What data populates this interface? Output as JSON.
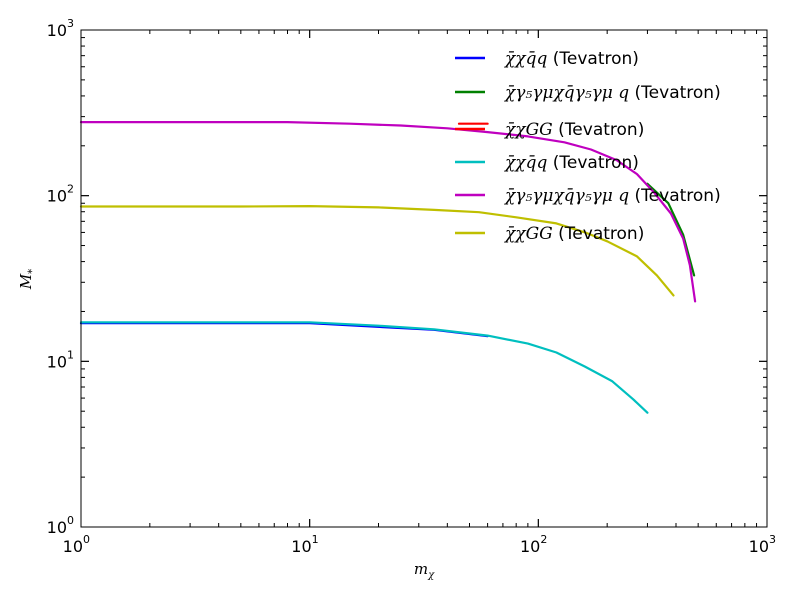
{
  "chart_data": {
    "type": "line",
    "xscale": "log",
    "yscale": "log",
    "xlim": [
      1,
      1000
    ],
    "ylim": [
      1,
      1000
    ],
    "xlabel": "m_χ",
    "ylabel": "M_*",
    "xticks": [
      {
        "base": "10",
        "exp": "0",
        "value": 1
      },
      {
        "base": "10",
        "exp": "1",
        "value": 10
      },
      {
        "base": "10",
        "exp": "2",
        "value": 100
      },
      {
        "base": "10",
        "exp": "3",
        "value": 1000
      }
    ],
    "yticks": [
      {
        "base": "10",
        "exp": "0",
        "value": 1
      },
      {
        "base": "10",
        "exp": "1",
        "value": 10
      },
      {
        "base": "10",
        "exp": "2",
        "value": 100
      },
      {
        "base": "10",
        "exp": "3",
        "value": 1000
      }
    ],
    "grid": false,
    "legend_position": "top-right",
    "series": [
      {
        "name": "χ̄χq̄q (Tevatron)",
        "color": "#0000ff",
        "x": [
          1,
          10,
          35,
          60
        ],
        "y": [
          17,
          17,
          15.5,
          14.2
        ]
      },
      {
        "name": "χ̄γ₅γμχq̄γ₅γμ q (Tevatron)",
        "color": "#008000",
        "x": [
          300,
          370,
          430,
          480
        ],
        "y": [
          118,
          90,
          58,
          33
        ]
      },
      {
        "name": "χ̄χGG (Tevatron)",
        "color": "#ff0000",
        "x": [
          45,
          60
        ],
        "y": [
          272,
          272
        ]
      },
      {
        "name": "χ̄χq̄q (Tevatron)",
        "color": "#00bfbf",
        "x": [
          1,
          10,
          20,
          35,
          60,
          90,
          120,
          160,
          210,
          260,
          300
        ],
        "y": [
          17.2,
          17.2,
          16.4,
          15.6,
          14.3,
          12.8,
          11.3,
          9.3,
          7.6,
          5.9,
          4.9
        ]
      },
      {
        "name": "χ̄γ₅γμχq̄γ₅γμ q (Tevatron)",
        "color": "#bf00bf",
        "x": [
          1,
          8,
          15,
          25,
          40,
          60,
          90,
          130,
          170,
          220,
          270,
          320,
          380,
          430,
          460,
          485
        ],
        "y": [
          278,
          278,
          272,
          265,
          255,
          242,
          228,
          210,
          190,
          164,
          135,
          105,
          78,
          55,
          38,
          23
        ]
      },
      {
        "name": "χ̄χGG (Tevatron)",
        "color": "#bfbf00",
        "x": [
          1,
          5,
          10,
          20,
          35,
          55,
          80,
          120,
          160,
          200,
          270,
          330,
          390
        ],
        "y": [
          86,
          86,
          86.5,
          85,
          82,
          79.5,
          74,
          68,
          60,
          53,
          43,
          33,
          25
        ]
      }
    ]
  }
}
